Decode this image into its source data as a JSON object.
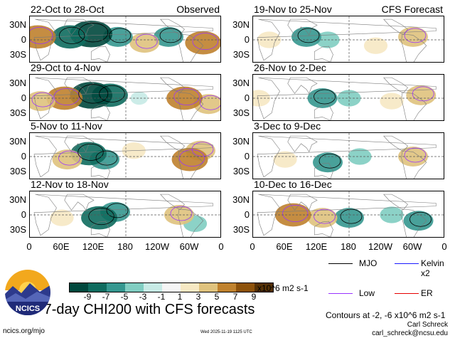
{
  "panels": [
    {
      "title": "22-Oct to 28-Oct",
      "label": "Observed",
      "col": 0,
      "row": 0
    },
    {
      "title": "29-Oct to 4-Nov",
      "label": "",
      "col": 0,
      "row": 1
    },
    {
      "title": "5-Nov to 11-Nov",
      "label": "",
      "col": 0,
      "row": 2
    },
    {
      "title": "12-Nov to 18-Nov",
      "label": "",
      "col": 0,
      "row": 3
    },
    {
      "title": "19-Nov to 25-Nov",
      "label": "CFS Forecast",
      "col": 1,
      "row": 0
    },
    {
      "title": "26-Nov to 2-Dec",
      "label": "",
      "col": 1,
      "row": 1
    },
    {
      "title": "3-Dec to 9-Dec",
      "label": "",
      "col": 1,
      "row": 2
    },
    {
      "title": "10-Dec to 16-Dec",
      "label": "",
      "col": 1,
      "row": 3
    }
  ],
  "lat_labels": [
    "30N",
    "0",
    "30S"
  ],
  "lon_labels": [
    "0",
    "60E",
    "120E",
    "180",
    "120W",
    "60W",
    "0"
  ],
  "colorbar": {
    "ticks": [
      "-9",
      "-7",
      "-5",
      "-3",
      "-1",
      "1",
      "3",
      "5",
      "7",
      "9"
    ],
    "colors": [
      "#00483d",
      "#0e6b5e",
      "#35978f",
      "#80cdc1",
      "#c7eae5",
      "#f5f5f5",
      "#f6e8c3",
      "#dfc27d",
      "#bf812d",
      "#8c510a",
      "#543005"
    ],
    "units": "x10^6 m2 s-1"
  },
  "legend": {
    "items": [
      {
        "name": "MJO",
        "color": "#000000"
      },
      {
        "name": "Kelvin x2",
        "color": "#1a1aff"
      },
      {
        "name": "Low",
        "color": "#9933ff"
      },
      {
        "name": "ER",
        "color": "#e60000"
      }
    ],
    "contours_note": "Contours at -2, -6 x10^6 m2 s-1"
  },
  "footer": {
    "main_title": "7-day CHI200 with CFS forecasts",
    "logo_text": "NCICS",
    "site": "ncics.org/mjo",
    "timestamp": "Wed 2025-11-19 1125 UTC",
    "author": "Carl Schreck",
    "email": "carl_schreck@ncsu.edu"
  },
  "chart_data": {
    "type": "heatmap",
    "title": "7-day CHI200 with CFS forecasts",
    "variable": "CHI200",
    "units": "x10^6 m2 s-1",
    "color_levels": [
      -9,
      -7,
      -5,
      -3,
      -1,
      1,
      3,
      5,
      7,
      9
    ],
    "y_ticks": [
      "30N",
      "0",
      "30S"
    ],
    "x_ticks": [
      "0",
      "60E",
      "120E",
      "180",
      "120W",
      "60W",
      "0"
    ],
    "xlim": [
      0,
      360
    ],
    "ylim": [
      -40,
      40
    ],
    "contour_levels": [
      -2,
      -6
    ],
    "contour_series": [
      "MJO",
      "Kelvin x2",
      "Low",
      "ER"
    ],
    "panels": [
      {
        "period": "22-Oct to 28-Oct",
        "source": "Observed",
        "anomaly_centers": [
          {
            "lon": 15,
            "lat": 5,
            "value": 7
          },
          {
            "lon": 75,
            "lat": 5,
            "value": -7
          },
          {
            "lon": 115,
            "lat": 10,
            "value": -9
          },
          {
            "lon": 165,
            "lat": 5,
            "value": -5
          },
          {
            "lon": 215,
            "lat": -5,
            "value": 5
          },
          {
            "lon": 260,
            "lat": 5,
            "value": -5
          },
          {
            "lon": 325,
            "lat": -5,
            "value": 7
          }
        ]
      },
      {
        "period": "29-Oct to 4-Nov",
        "source": "Observed",
        "anomaly_centers": [
          {
            "lon": 20,
            "lat": -5,
            "value": 5
          },
          {
            "lon": 65,
            "lat": 0,
            "value": 7
          },
          {
            "lon": 115,
            "lat": 5,
            "value": -9
          },
          {
            "lon": 150,
            "lat": 5,
            "value": -7
          },
          {
            "lon": 205,
            "lat": 0,
            "value": -1
          },
          {
            "lon": 290,
            "lat": 0,
            "value": 7
          },
          {
            "lon": 335,
            "lat": -10,
            "value": 5
          }
        ]
      },
      {
        "period": "5-Nov to 11-Nov",
        "source": "Observed",
        "anomaly_centers": [
          {
            "lon": 70,
            "lat": -5,
            "value": 5
          },
          {
            "lon": 110,
            "lat": 5,
            "value": -7
          },
          {
            "lon": 140,
            "lat": -5,
            "value": -5
          },
          {
            "lon": 195,
            "lat": 10,
            "value": 3
          },
          {
            "lon": 300,
            "lat": -5,
            "value": 7
          },
          {
            "lon": 320,
            "lat": 10,
            "value": 5
          }
        ]
      },
      {
        "period": "12-Nov to 18-Nov",
        "source": "Observed",
        "anomaly_centers": [
          {
            "lon": 60,
            "lat": -5,
            "value": 3
          },
          {
            "lon": 130,
            "lat": -5,
            "value": -7
          },
          {
            "lon": 160,
            "lat": 5,
            "value": -5
          },
          {
            "lon": 280,
            "lat": 0,
            "value": 5
          },
          {
            "lon": 310,
            "lat": -15,
            "value": -3
          }
        ]
      },
      {
        "period": "19-Nov to 25-Nov",
        "source": "CFS Forecast",
        "anomaly_centers": [
          {
            "lon": 30,
            "lat": 0,
            "value": 3
          },
          {
            "lon": 100,
            "lat": 5,
            "value": -5
          },
          {
            "lon": 140,
            "lat": 0,
            "value": -3
          },
          {
            "lon": 230,
            "lat": -10,
            "value": 3
          },
          {
            "lon": 300,
            "lat": 5,
            "value": 5
          }
        ]
      },
      {
        "period": "26-Nov to 2-Dec",
        "source": "CFS Forecast",
        "anomaly_centers": [
          {
            "lon": 10,
            "lat": 0,
            "value": 3
          },
          {
            "lon": 130,
            "lat": 0,
            "value": -5
          },
          {
            "lon": 180,
            "lat": 0,
            "value": -3
          },
          {
            "lon": 260,
            "lat": -5,
            "value": 3
          },
          {
            "lon": 315,
            "lat": 5,
            "value": 5
          }
        ]
      },
      {
        "period": "3-Dec to 9-Dec",
        "source": "CFS Forecast",
        "anomaly_centers": [
          {
            "lon": 60,
            "lat": -5,
            "value": 3
          },
          {
            "lon": 140,
            "lat": -10,
            "value": -5
          },
          {
            "lon": 200,
            "lat": 0,
            "value": -3
          },
          {
            "lon": 300,
            "lat": 0,
            "value": 5
          }
        ]
      },
      {
        "period": "10-Dec to 16-Dec",
        "source": "CFS Forecast",
        "anomaly_centers": [
          {
            "lon": 75,
            "lat": 0,
            "value": 7
          },
          {
            "lon": 130,
            "lat": -5,
            "value": 5
          },
          {
            "lon": 180,
            "lat": -5,
            "value": -5
          },
          {
            "lon": 260,
            "lat": 0,
            "value": -3
          },
          {
            "lon": 310,
            "lat": -10,
            "value": -5
          }
        ]
      }
    ]
  }
}
